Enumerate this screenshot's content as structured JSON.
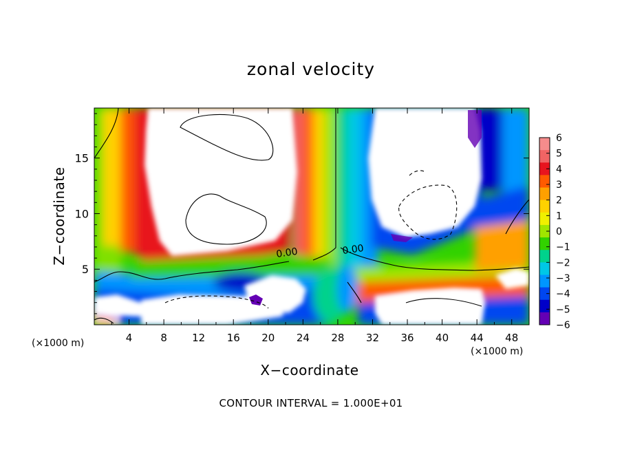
{
  "chart_data": {
    "type": "heatmap",
    "title": "zonal velocity",
    "xlabel": "X−coordinate",
    "ylabel": "Z−coordinate",
    "x_unit_label": "(×1000 m)",
    "x_unit_label_right": "(×1000 m)",
    "xlim": [
      0,
      50
    ],
    "ylim": [
      0,
      19.5
    ],
    "x_ticks": [
      4,
      8,
      12,
      16,
      20,
      24,
      28,
      32,
      36,
      40,
      44,
      48
    ],
    "y_ticks": [
      5,
      10,
      15
    ],
    "colorbar": {
      "min": -6,
      "max": 6,
      "ticks": [
        6,
        5,
        4,
        3,
        2,
        1,
        0,
        -1,
        -2,
        -3,
        -4,
        -5,
        -6
      ],
      "tick_labels": [
        "6",
        "5",
        "4",
        "3",
        "2",
        "1",
        "0",
        "−1",
        "−2",
        "−3",
        "−4",
        "−5",
        "−6"
      ],
      "colors_high_to_low": [
        "#f58c8c",
        "#f06464",
        "#e8141e",
        "#ff5a00",
        "#ffa000",
        "#ffd200",
        "#f0f000",
        "#a0e600",
        "#32d200",
        "#00d28c",
        "#00c8e6",
        "#0096ff",
        "#0046f0",
        "#0000c8",
        "#6400b4"
      ],
      "saturated_high_color": "#ffffff",
      "saturated_low_color": "#ffffff"
    },
    "contour_labels": [
      {
        "text": "0.00",
        "x": 22.2,
        "y": 6.2
      },
      {
        "text": "0.00",
        "x": 29.8,
        "y": 6.5
      }
    ],
    "footnote": "CONTOUR INTERVAL = 1.000E+01"
  }
}
